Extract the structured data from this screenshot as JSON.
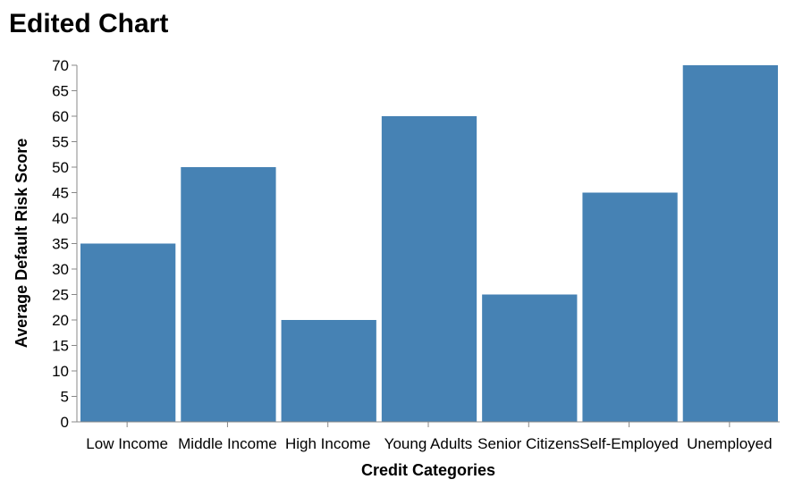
{
  "chart_data": {
    "type": "bar",
    "title": "Edited Chart",
    "xlabel": "Credit Categories",
    "ylabel": "Average Default Risk Score",
    "categories": [
      "Low Income",
      "Middle Income",
      "High Income",
      "Young Adults",
      "Senior Citizens",
      "Self-Employed",
      "Unemployed"
    ],
    "values": [
      35,
      50,
      20,
      60,
      25,
      45,
      70
    ],
    "ylim": [
      0,
      70
    ],
    "yticks": [
      0,
      5,
      10,
      15,
      20,
      25,
      30,
      35,
      40,
      45,
      50,
      55,
      60,
      65,
      70
    ],
    "grid": false,
    "bar_color": "#4682b4"
  }
}
